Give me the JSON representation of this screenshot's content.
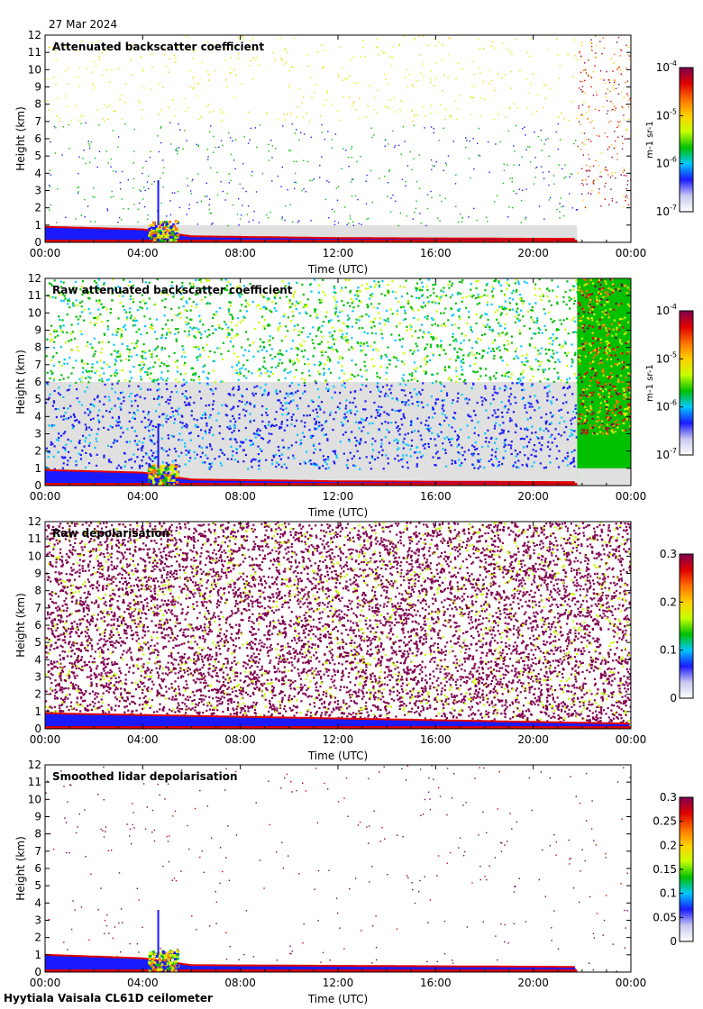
{
  "header": {
    "date": "27 Mar 2024"
  },
  "footer": {
    "site_label": "Hyytiala Vaisala CL61D ceilometer"
  },
  "colors": {
    "cmap": [
      "#ffffff",
      "#c8c8f0",
      "#1a1aff",
      "#00c8ff",
      "#00c000",
      "#c8ff00",
      "#ffd000",
      "#ff7000",
      "#e00000",
      "#800050"
    ],
    "no_data_grey": "#e0e0e0"
  },
  "chart_data": [
    {
      "type": "heatmap",
      "title": "Attenuated backscatter coefficient",
      "xlabel": "Time (UTC)",
      "ylabel": "Height (km)",
      "xticks": [
        "00:00",
        "04:00",
        "08:00",
        "12:00",
        "16:00",
        "20:00",
        "00:00"
      ],
      "yticks": [
        "0",
        "1",
        "2",
        "3",
        "4",
        "5",
        "6",
        "7",
        "8",
        "9",
        "10",
        "11",
        "12"
      ],
      "xlim_hours": [
        0,
        24
      ],
      "ylim_km": [
        0,
        12
      ],
      "colorbar": {
        "scale": "log",
        "range": [
          1e-07,
          0.0001
        ],
        "tick_bases": [
          "10",
          "10",
          "10",
          "10"
        ],
        "tick_exps": [
          "-7",
          "-6",
          "-5",
          "-4"
        ],
        "unit": "m-1 sr-1"
      },
      "features": {
        "boundary_layer_top_km": [
          [
            0,
            0.9
          ],
          [
            4,
            0.75
          ],
          [
            6,
            0.35
          ],
          [
            12,
            0.25
          ],
          [
            21.8,
            0.2
          ]
        ],
        "aerosol_burst_hours": [
          4.2,
          5.4
        ],
        "noise_level": "sparse",
        "grey_mask_top_km": 1.0,
        "data_end_hour": 21.8
      }
    },
    {
      "type": "heatmap",
      "title": "Raw attenuated backscatter coefficient",
      "xlabel": "Time (UTC)",
      "ylabel": "Height (km)",
      "xticks": [
        "00:00",
        "04:00",
        "08:00",
        "12:00",
        "16:00",
        "20:00",
        "00:00"
      ],
      "yticks": [
        "0",
        "1",
        "2",
        "3",
        "4",
        "5",
        "6",
        "7",
        "8",
        "9",
        "10",
        "11",
        "12"
      ],
      "xlim_hours": [
        0,
        24
      ],
      "ylim_km": [
        0,
        12
      ],
      "colorbar": {
        "scale": "log",
        "range": [
          1e-07,
          0.0001
        ],
        "tick_bases": [
          "10",
          "10",
          "10",
          "10"
        ],
        "tick_exps": [
          "-7",
          "-6",
          "-5",
          "-4"
        ],
        "unit": "m-1 sr-1"
      },
      "features": {
        "boundary_layer_top_km": [
          [
            0,
            0.9
          ],
          [
            4,
            0.75
          ],
          [
            6,
            0.35
          ],
          [
            12,
            0.25
          ],
          [
            21.8,
            0.2
          ]
        ],
        "aerosol_burst_hours": [
          4.2,
          5.4
        ],
        "noise_level": "dense",
        "data_end_hour": 21.8
      }
    },
    {
      "type": "heatmap",
      "title": "Raw depolarisation",
      "xlabel": "Time (UTC)",
      "ylabel": "Height (km)",
      "xticks": [
        "00:00",
        "04:00",
        "08:00",
        "12:00",
        "16:00",
        "20:00",
        "00:00"
      ],
      "yticks": [
        "0",
        "1",
        "2",
        "3",
        "4",
        "5",
        "6",
        "7",
        "8",
        "9",
        "10",
        "11",
        "12"
      ],
      "xlim_hours": [
        0,
        24
      ],
      "ylim_km": [
        0,
        12
      ],
      "colorbar": {
        "scale": "linear",
        "range": [
          0,
          0.3
        ],
        "ticks": [
          "0",
          "0.1",
          "0.2",
          "0.3"
        ]
      },
      "features": {
        "noise_level": "saturated",
        "boundary_layer_top_km": [
          [
            0,
            0.9
          ],
          [
            24,
            0.3
          ]
        ]
      }
    },
    {
      "type": "heatmap",
      "title": "Smoothed lidar depolarisation",
      "xlabel": "Time (UTC)",
      "ylabel": "Height (km)",
      "xticks": [
        "00:00",
        "04:00",
        "08:00",
        "12:00",
        "16:00",
        "20:00",
        "00:00"
      ],
      "yticks": [
        "0",
        "1",
        "2",
        "3",
        "4",
        "5",
        "6",
        "7",
        "8",
        "9",
        "10",
        "11",
        "12"
      ],
      "xlim_hours": [
        0,
        24
      ],
      "ylim_km": [
        0,
        12
      ],
      "colorbar": {
        "scale": "linear",
        "range": [
          0,
          0.3
        ],
        "ticks": [
          "0",
          "0.05",
          "0.1",
          "0.15",
          "0.2",
          "0.25",
          "0.3"
        ]
      },
      "features": {
        "boundary_layer_top_km": [
          [
            0,
            1.0
          ],
          [
            4,
            0.8
          ],
          [
            6,
            0.4
          ],
          [
            21.8,
            0.3
          ]
        ],
        "aerosol_burst_hours": [
          4.2,
          5.4
        ],
        "noise_level": "very-sparse",
        "data_end_hour": 21.8
      }
    }
  ]
}
